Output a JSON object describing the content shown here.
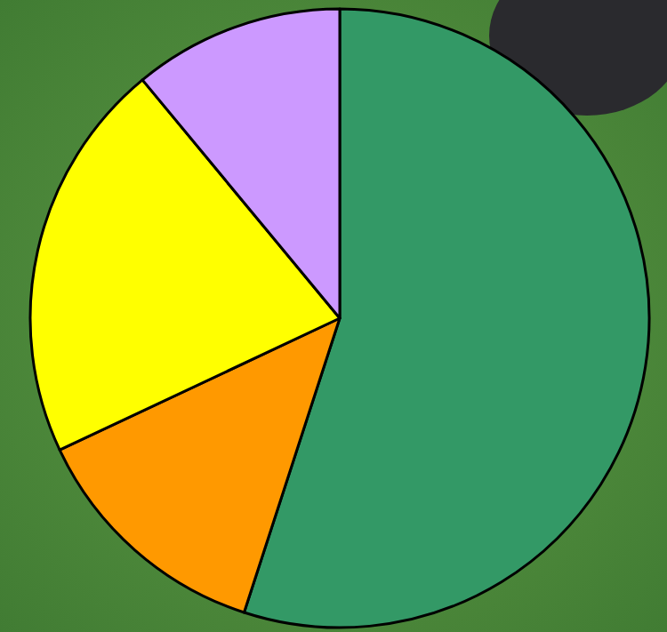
{
  "chart_data": {
    "type": "pie",
    "values": [
      55,
      13,
      21,
      11
    ],
    "colors": [
      "#339966",
      "#ff9900",
      "#ffff00",
      "#cc99ff"
    ]
  }
}
